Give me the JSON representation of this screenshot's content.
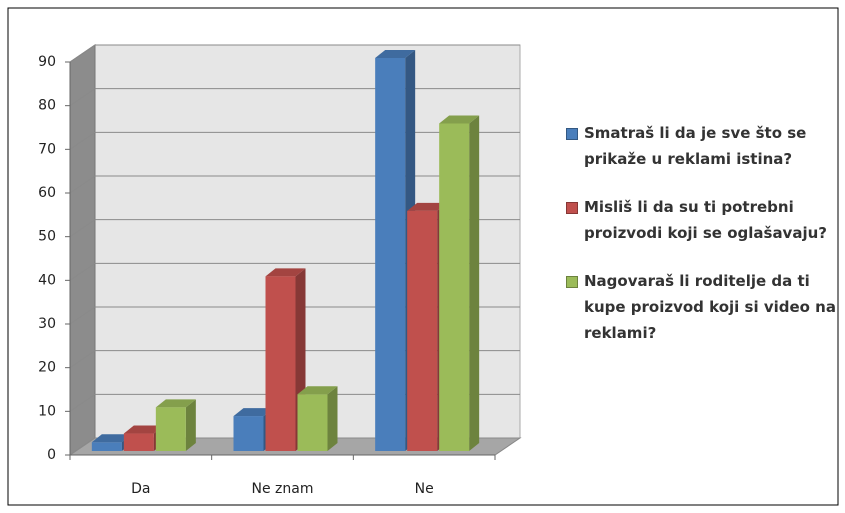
{
  "chart_data": {
    "type": "bar3d",
    "categories": [
      "Da",
      "Ne znam",
      "Ne"
    ],
    "series": [
      {
        "name": "Smatraš li da je sve što se prikaže u reklami istina?",
        "color": "#4a7ebb",
        "values": [
          2,
          8,
          90
        ]
      },
      {
        "name": "Misliš li da su ti potrebni proizvodi koji se oglašavaju?",
        "color": "#c0504d",
        "values": [
          4,
          40,
          55
        ]
      },
      {
        "name": "Nagovaraš li roditelje da ti kupe proizvod koji si video na reklami?",
        "color": "#9bbb59",
        "values": [
          10,
          13,
          75
        ]
      }
    ],
    "ylim": [
      0,
      90
    ],
    "yticks": [
      0,
      10,
      20,
      30,
      40,
      50,
      60,
      70,
      80,
      90
    ],
    "grid": true,
    "legend": "right"
  }
}
